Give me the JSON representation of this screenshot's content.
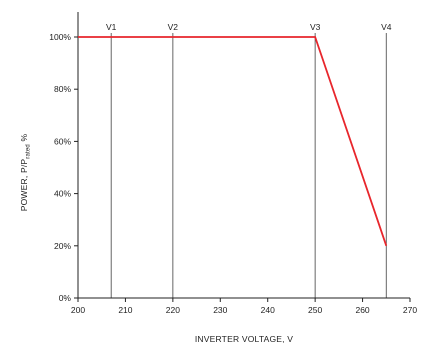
{
  "chart_data": {
    "type": "line",
    "title": "",
    "xlabel": "INVERTER VOLTAGE, V",
    "ylabel": {
      "prefix": "POWER, P/P",
      "subscript": "rated",
      "suffix": " %"
    },
    "xlim": [
      200,
      270
    ],
    "ylim": [
      0,
      100
    ],
    "x_ticks": [
      200,
      210,
      220,
      230,
      240,
      250,
      260,
      270
    ],
    "y_ticks": [
      0,
      20,
      40,
      60,
      80,
      100
    ],
    "y_tick_labels": [
      "0%",
      "20%",
      "40%",
      "60%",
      "80%",
      "100%"
    ],
    "grid": false,
    "series": [
      {
        "color": "#e8262c",
        "x": [
          200,
          250,
          265
        ],
        "y": [
          100,
          100,
          20
        ]
      }
    ],
    "markers": [
      {
        "label": "V1",
        "x": 207
      },
      {
        "label": "V2",
        "x": 220
      },
      {
        "label": "V3",
        "x": 250
      },
      {
        "label": "V4",
        "x": 265
      }
    ],
    "colors": {
      "series": "#e8262c",
      "axis": "#222222",
      "marker_line": "#555555"
    }
  }
}
